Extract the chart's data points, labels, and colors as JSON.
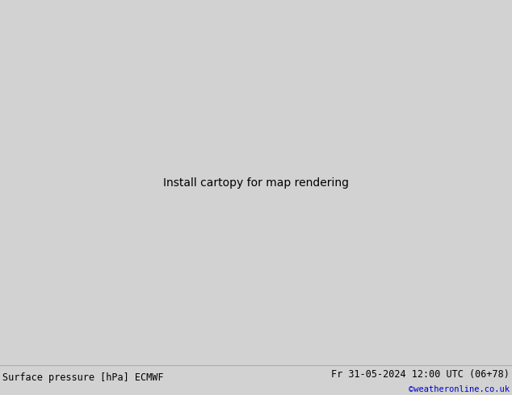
{
  "title_left": "Surface pressure [hPa] ECMWF",
  "title_right": "Fr 31-05-2024 12:00 UTC (06+78)",
  "copyright": "©weatheronline.co.uk",
  "bg_color": "#d2d2d2",
  "land_color": "#aae8aa",
  "figsize": [
    6.34,
    4.9
  ],
  "dpi": 100,
  "extent": [
    -90,
    20,
    -60,
    15
  ],
  "lon_min": -90,
  "lon_max": 20,
  "lat_min": -60,
  "lat_max": 15
}
